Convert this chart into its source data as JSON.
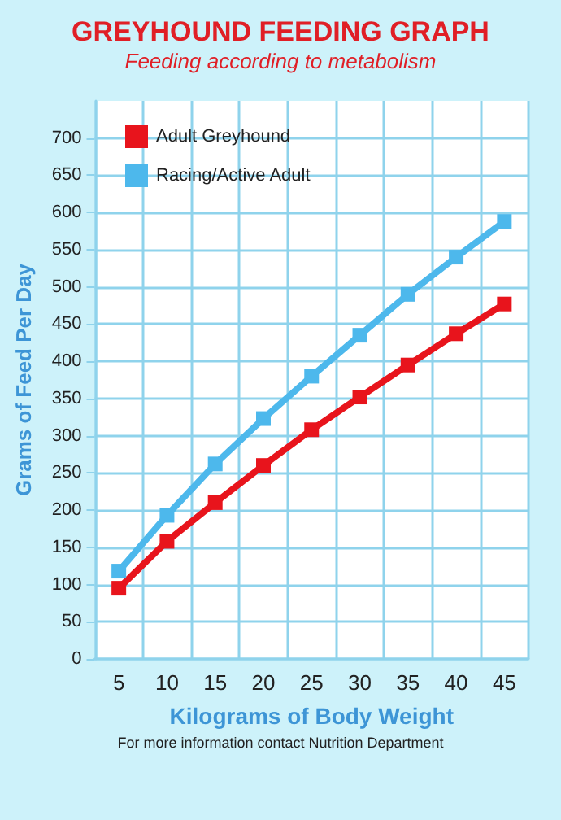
{
  "chart_data": {
    "type": "line",
    "title": "GREYHOUND FEEDING GRAPH",
    "subtitle": "Feeding according to metabolism",
    "xlabel": "Kilograms of Body Weight",
    "ylabel": "Grams of Feed Per Day",
    "annotations": [
      "For more information contact Nutrition Department"
    ],
    "categories": [
      "5",
      "10",
      "15",
      "20",
      "25",
      "30",
      "35",
      "40",
      "45"
    ],
    "series": [
      {
        "name": "Adult Greyhound",
        "color": "#e8141c",
        "values": [
          95,
          158,
          210,
          260,
          308,
          352,
          395,
          437,
          477
        ]
      },
      {
        "name": "Racing/Active Adult",
        "color": "#4db8ec",
        "values": [
          118,
          193,
          262,
          323,
          380,
          435,
          490,
          540,
          588
        ]
      }
    ],
    "ylim": [
      0,
      750
    ],
    "yticks": [
      0,
      50,
      100,
      150,
      200,
      250,
      300,
      350,
      400,
      450,
      500,
      550,
      600,
      650,
      700
    ],
    "grid": true,
    "legend": "top left",
    "marker": "square",
    "line_style": "solid"
  }
}
